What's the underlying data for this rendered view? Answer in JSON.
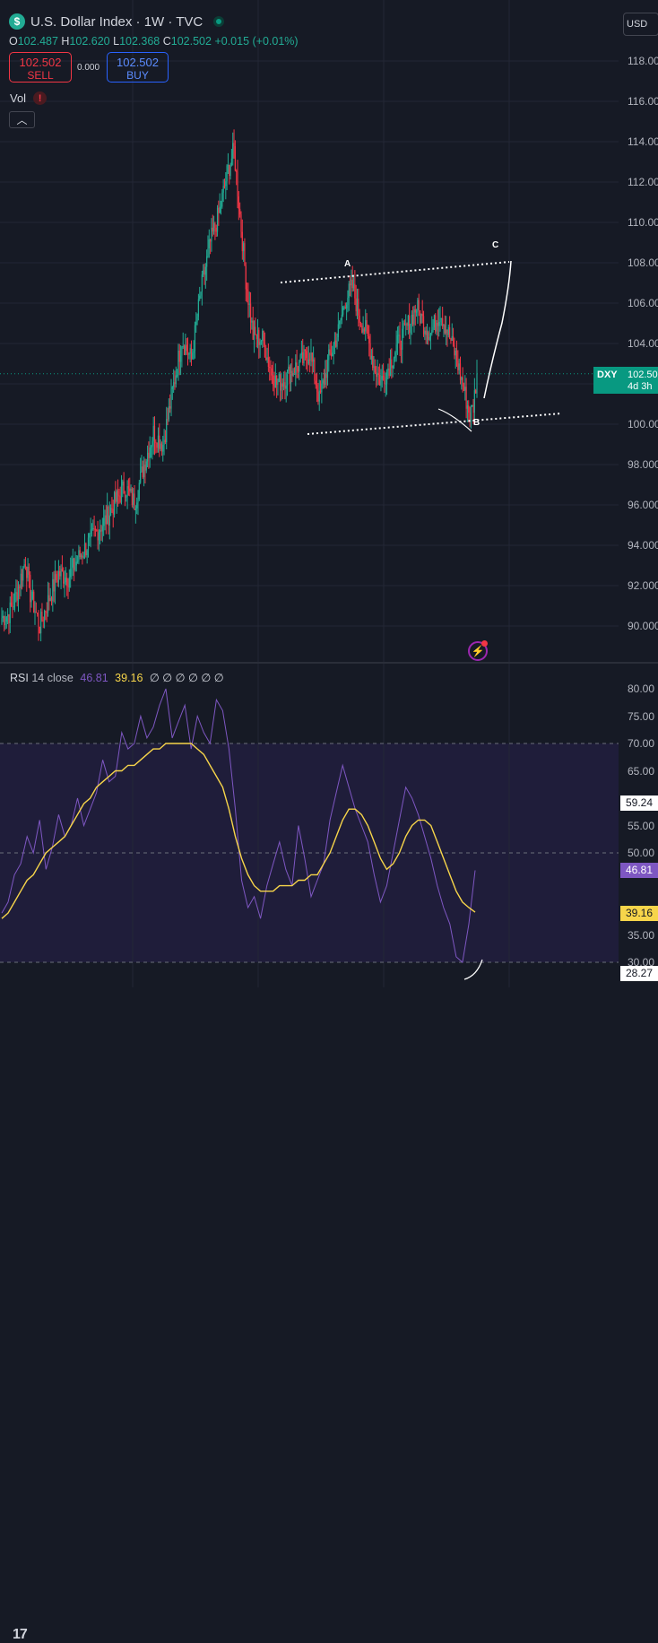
{
  "header": {
    "symbol_icon": "dollar-sign",
    "title": "U.S. Dollar Index · 1W · TVC",
    "ohlc": {
      "o_label": "O",
      "o": "102.487",
      "h_label": "H",
      "h": "102.620",
      "l_label": "L",
      "l": "102.368",
      "c_label": "C",
      "c": "102.502",
      "change": "+0.015 (+0.01%)"
    },
    "sell": {
      "price": "102.502",
      "label": "SELL"
    },
    "spread": "0.000",
    "buy": {
      "price": "102.502",
      "label": "BUY"
    },
    "vol_label": "Vol",
    "vol_warning": "!",
    "collapse_icon": "chevron-up-icon",
    "currency": "USD"
  },
  "price_axis": {
    "ticks": [
      "118.000",
      "116.000",
      "114.000",
      "112.000",
      "110.000",
      "108.000",
      "106.000",
      "104.000",
      "102.000",
      "100.000",
      "98.000",
      "96.000",
      "94.000",
      "92.000",
      "90.000"
    ],
    "current_tag": {
      "symbol": "DXY",
      "value": "102.50",
      "countdown": "4d 3h"
    }
  },
  "annotations": {
    "wave_a": "A",
    "wave_b": "B",
    "wave_c": "C"
  },
  "rsi": {
    "legend": {
      "name": "RSI",
      "params": "14 close",
      "rsi_value": "46.81",
      "ma_value": "39.16",
      "empty_values": "∅ ∅ ∅ ∅ ∅ ∅"
    },
    "ticks": [
      "80.00",
      "75.00",
      "70.00",
      "65.00",
      "55.00",
      "50.00",
      "35.00",
      "30.00"
    ],
    "tags": {
      "upper": "59.24",
      "rsi": "46.81",
      "ma": "39.16",
      "lower": "28.27"
    }
  },
  "colors": {
    "background": "#161a25",
    "up": "#22ab94",
    "down": "#f23645",
    "rsi_line": "#7e57c2",
    "rsi_ma": "#f7d54a",
    "band": "#1f1d3a"
  },
  "chart_data": [
    {
      "type": "candlestick",
      "title": "U.S. Dollar Index · 1W · TVC",
      "ylim": [
        89,
        119
      ],
      "anchors_close": [
        [
          0,
          90.4
        ],
        [
          6,
          90.6
        ],
        [
          12,
          91.5
        ],
        [
          16,
          92.4
        ],
        [
          20,
          93.3
        ],
        [
          24,
          91.6
        ],
        [
          28,
          90.8
        ],
        [
          32,
          90.0
        ],
        [
          40,
          91.4
        ],
        [
          48,
          92.6
        ],
        [
          56,
          92.4
        ],
        [
          64,
          93.3
        ],
        [
          72,
          94.0
        ],
        [
          80,
          94.7
        ],
        [
          88,
          95.3
        ],
        [
          96,
          96.2
        ],
        [
          104,
          96.9
        ],
        [
          112,
          96.1
        ],
        [
          120,
          98.0
        ],
        [
          128,
          99.6
        ],
        [
          136,
          99.0
        ],
        [
          144,
          101.6
        ],
        [
          152,
          104.2
        ],
        [
          160,
          103.2
        ],
        [
          168,
          106.6
        ],
        [
          176,
          109.0
        ],
        [
          184,
          110.6
        ],
        [
          190,
          112.4
        ],
        [
          196,
          113.6
        ],
        [
          200,
          111.0
        ],
        [
          206,
          107.2
        ],
        [
          212,
          104.4
        ],
        [
          220,
          104.2
        ],
        [
          226,
          102.9
        ],
        [
          232,
          102.0
        ],
        [
          238,
          102.2
        ],
        [
          244,
          102.6
        ],
        [
          252,
          103.0
        ],
        [
          260,
          103.6
        ],
        [
          268,
          101.2
        ],
        [
          276,
          103.2
        ],
        [
          284,
          104.6
        ],
        [
          290,
          106.2
        ],
        [
          296,
          106.8
        ],
        [
          302,
          105.3
        ],
        [
          308,
          104.5
        ],
        [
          314,
          102.9
        ],
        [
          320,
          102.1
        ],
        [
          326,
          102.8
        ],
        [
          334,
          103.9
        ],
        [
          342,
          104.8
        ],
        [
          350,
          105.8
        ],
        [
          356,
          105.0
        ],
        [
          362,
          104.5
        ],
        [
          370,
          105.6
        ],
        [
          378,
          104.3
        ],
        [
          384,
          103.2
        ],
        [
          388,
          102.2
        ],
        [
          392,
          101.2
        ],
        [
          395,
          100.4
        ],
        [
          398,
          100.9
        ],
        [
          401,
          102.5
        ]
      ],
      "bars": 402,
      "last_close": 102.502
    },
    {
      "type": "line",
      "title": "RSI 14 close",
      "ylim": [
        27,
        82
      ],
      "series": [
        {
          "name": "RSI",
          "values": [
            39,
            41,
            46,
            48,
            53,
            50,
            56,
            47,
            51,
            57,
            53,
            55,
            60,
            55,
            58,
            61,
            67,
            63,
            64,
            72,
            69,
            70,
            75,
            71,
            73,
            77,
            80,
            71,
            74,
            77,
            69,
            75,
            72,
            70,
            78,
            76,
            69,
            58,
            45,
            40,
            42,
            38,
            44,
            48,
            52,
            47,
            44,
            55,
            49,
            42,
            45,
            48,
            56,
            61,
            66,
            62,
            58,
            55,
            52,
            46,
            41,
            44,
            50,
            56,
            62,
            60,
            57,
            53,
            49,
            44,
            40,
            37,
            31,
            30,
            37,
            46.81
          ]
        },
        {
          "name": "MA",
          "values": [
            38,
            39,
            41,
            43,
            45,
            46,
            48,
            50,
            51,
            52,
            53,
            55,
            57,
            59,
            60,
            62,
            63,
            64,
            65,
            65,
            66,
            66,
            67,
            68,
            69,
            69,
            70,
            70,
            70,
            70,
            70,
            69,
            68,
            66,
            64,
            62,
            58,
            53,
            49,
            46,
            44,
            43,
            43,
            43,
            44,
            44,
            44,
            45,
            45,
            46,
            46,
            48,
            50,
            53,
            56,
            58,
            58,
            57,
            55,
            52,
            49,
            47,
            48,
            50,
            53,
            55,
            56,
            56,
            55,
            52,
            49,
            46,
            43,
            41,
            40,
            39.16
          ]
        }
      ],
      "levels": [
        70,
        50,
        30
      ]
    }
  ]
}
